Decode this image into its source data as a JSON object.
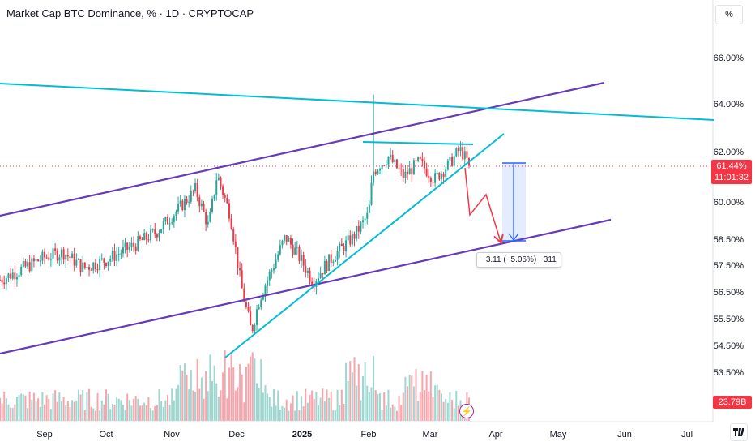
{
  "header": {
    "title": "Market Cap BTC Dominance, % · 1D · CRYPTOCAP",
    "unit_button": "%"
  },
  "price_axis": {
    "ticks": [
      "66.00%",
      "64.00%",
      "62.00%",
      "60.00%",
      "58.50%",
      "57.50%",
      "56.50%",
      "55.50%",
      "54.50%",
      "53.50%"
    ],
    "current_price": "61.44%",
    "countdown": "11:01:32",
    "volume_tag": "23.79B"
  },
  "time_axis": {
    "ticks": [
      {
        "label": "Sep",
        "bold": false
      },
      {
        "label": "Oct",
        "bold": false
      },
      {
        "label": "Nov",
        "bold": false
      },
      {
        "label": "Dec",
        "bold": false
      },
      {
        "label": "2025",
        "bold": true
      },
      {
        "label": "Feb",
        "bold": false
      },
      {
        "label": "Mar",
        "bold": false
      },
      {
        "label": "Apr",
        "bold": false
      },
      {
        "label": "May",
        "bold": false
      },
      {
        "label": "Jun",
        "bold": false
      },
      {
        "label": "Jul",
        "bold": false
      }
    ]
  },
  "measure": {
    "label": "−3.11 (−5.06%) −311"
  },
  "colors": {
    "up": "#26a69a",
    "down": "#f23645",
    "channel": "#673ab7",
    "trendline": "#00bcd4",
    "measure": "#2962ff",
    "projection": "#f23645"
  },
  "icons": [
    "lightning-icon",
    "tradingview-logo-icon"
  ],
  "chart_data": {
    "type": "candlestick",
    "title": "Market Cap BTC Dominance, % · 1D · CRYPTOCAP",
    "y_axis_ticks": [
      53.5,
      54.5,
      55.5,
      56.5,
      57.5,
      58.5,
      60.0,
      62.0,
      64.0,
      66.0
    ],
    "y_scale": "non-linear (log-like)",
    "x_axis_ticks": [
      "Sep",
      "Oct",
      "Nov",
      "Dec",
      "2025",
      "Feb",
      "Mar",
      "Apr",
      "May",
      "Jun",
      "Jul"
    ],
    "last_price": 61.44,
    "approx_path": [
      {
        "date": "2024-08-01",
        "close": 56.6
      },
      {
        "date": "2024-08-15",
        "close": 57.1
      },
      {
        "date": "2024-09-01",
        "close": 57.8
      },
      {
        "date": "2024-09-10",
        "close": 58.0
      },
      {
        "date": "2024-09-20",
        "close": 57.4
      },
      {
        "date": "2024-10-01",
        "close": 57.7
      },
      {
        "date": "2024-10-15",
        "close": 58.3
      },
      {
        "date": "2024-10-25",
        "close": 58.8
      },
      {
        "date": "2024-11-05",
        "close": 59.8
      },
      {
        "date": "2024-11-12",
        "close": 60.5
      },
      {
        "date": "2024-11-18",
        "close": 59.0
      },
      {
        "date": "2024-11-22",
        "close": 61.1
      },
      {
        "date": "2024-11-28",
        "close": 59.5
      },
      {
        "date": "2024-12-03",
        "close": 56.8
      },
      {
        "date": "2024-12-08",
        "close": 55.0
      },
      {
        "date": "2024-12-12",
        "close": 56.3
      },
      {
        "date": "2024-12-18",
        "close": 57.4
      },
      {
        "date": "2024-12-24",
        "close": 58.6
      },
      {
        "date": "2024-12-30",
        "close": 57.9
      },
      {
        "date": "2025-01-06",
        "close": 56.9
      },
      {
        "date": "2025-01-15",
        "close": 57.8
      },
      {
        "date": "2025-01-25",
        "close": 58.6
      },
      {
        "date": "2025-02-01",
        "close": 59.5
      },
      {
        "date": "2025-02-03",
        "close": 61.2
      },
      {
        "date": "2025-02-10",
        "close": 61.8
      },
      {
        "date": "2025-02-17",
        "close": 61.0
      },
      {
        "date": "2025-02-24",
        "close": 61.6
      },
      {
        "date": "2025-03-03",
        "close": 60.9
      },
      {
        "date": "2025-03-10",
        "close": 61.5
      },
      {
        "date": "2025-03-15",
        "close": 62.1
      },
      {
        "date": "2025-03-20",
        "close": 61.44
      }
    ],
    "feb_spike_high": 64.4,
    "resistance_level": 62.2,
    "measure_target": 58.3
  }
}
